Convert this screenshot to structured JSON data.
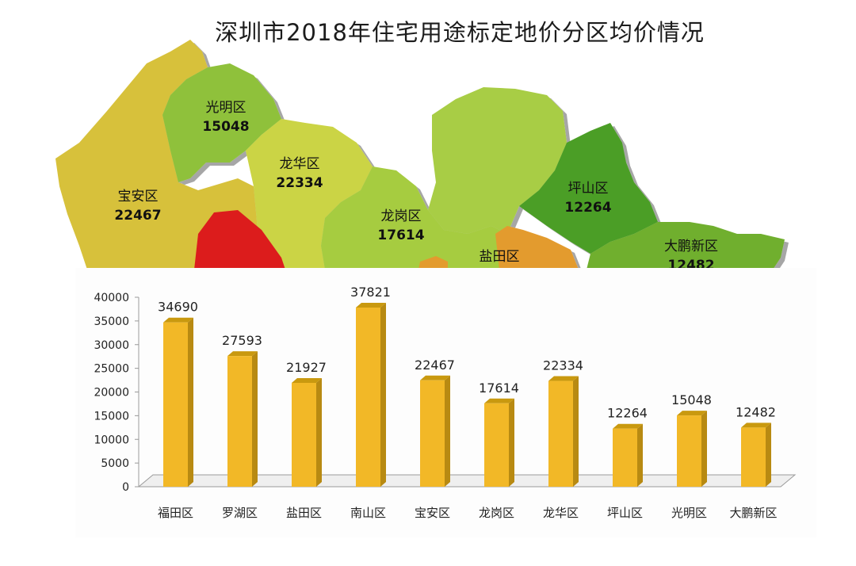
{
  "title": "深圳市2018年住宅用途标定地价分区均价情况",
  "map": {
    "regions": [
      {
        "id": "baoan",
        "name": "宝安区",
        "value": "22467",
        "color": "#d7c13a"
      },
      {
        "id": "guangming",
        "name": "光明区",
        "value": "15048",
        "color": "#8fc13a"
      },
      {
        "id": "longhua",
        "name": "龙华区",
        "value": "22334",
        "color": "#cbd445"
      },
      {
        "id": "longgang",
        "name": "龙岗区",
        "value": "17614",
        "color": "#a6cc3f"
      },
      {
        "id": "pingshan",
        "name": "坪山区",
        "value": "12264",
        "color": "#4c9e27"
      },
      {
        "id": "yantian",
        "name": "盐田区",
        "value": "",
        "color": "#e39b2e"
      },
      {
        "id": "dapeng",
        "name": "大鹏新区",
        "value": "12482",
        "color": "#6faf2e"
      },
      {
        "id": "nanshan",
        "name": "",
        "value": "",
        "color": "#dc1f1f"
      }
    ]
  },
  "chart_data": {
    "type": "bar",
    "categories": [
      "福田区",
      "罗湖区",
      "盐田区",
      "南山区",
      "宝安区",
      "龙岗区",
      "龙华区",
      "坪山区",
      "光明区",
      "大鹏新区"
    ],
    "values": [
      34690,
      27593,
      21927,
      37821,
      22467,
      17614,
      22334,
      12264,
      15048,
      12482
    ],
    "ylim": [
      0,
      40000
    ],
    "yticks": [
      0,
      5000,
      10000,
      15000,
      20000,
      25000,
      30000,
      35000,
      40000
    ],
    "bar_color": "#f2b827",
    "grid": false,
    "legend": "none"
  }
}
